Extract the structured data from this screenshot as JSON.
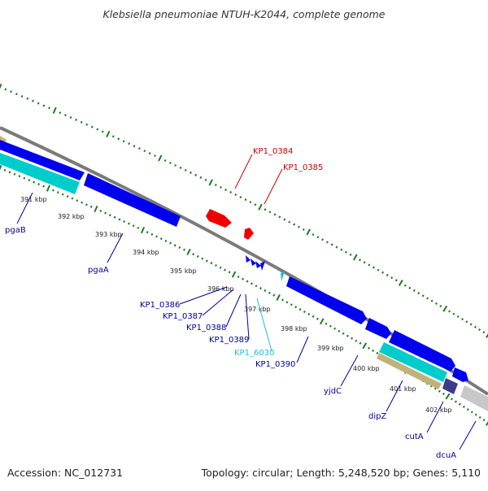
{
  "title": "Klebsiella pneumoniae NTUH-K2044, complete genome",
  "footer": {
    "accession": "Accession: NC_012731",
    "summary": "Topology: circular; Length: 5,248,520 bp; Genes: 5,110"
  },
  "colors": {
    "backbone": "#7a7a7a",
    "ticks": "#1c7d1c",
    "forward_gene": "#0000ee",
    "reverse_gene": "#0000ee",
    "cyan_feature": "#00cccc",
    "red_feature": "#ee0000",
    "tan_feature": "#bfb27a",
    "purple_feature": "#3c3c8c",
    "gray_feature": "#c8c8c8",
    "label_blue": "#00009c",
    "label_red": "#cc0000",
    "label_cyan": "#22bbdd"
  },
  "ruler": [
    "391 kbp",
    "392 kbp",
    "393 kbp",
    "394 kbp",
    "395 kbp",
    "396 kbp",
    "397 kbp",
    "398 kbp",
    "399 kbp",
    "400 kbp",
    "401 kbp",
    "402 kbp"
  ],
  "gene_labels": {
    "kp1_0384": "KP1_0384",
    "kp1_0385": "KP1_0385",
    "pgaB": "pgaB",
    "pgaA": "pgaA",
    "kp1_0386": "KP1_0386",
    "kp1_0387": "KP1_0387",
    "kp1_0388": "KP1_0388",
    "kp1_0389": "KP1_0389",
    "kp1_6030": "KP1_6030",
    "kp1_0390": "KP1_0390",
    "yjdC": "yjdC",
    "dipZ": "dipZ",
    "cutA": "cutA",
    "dcuA": "dcuA"
  }
}
